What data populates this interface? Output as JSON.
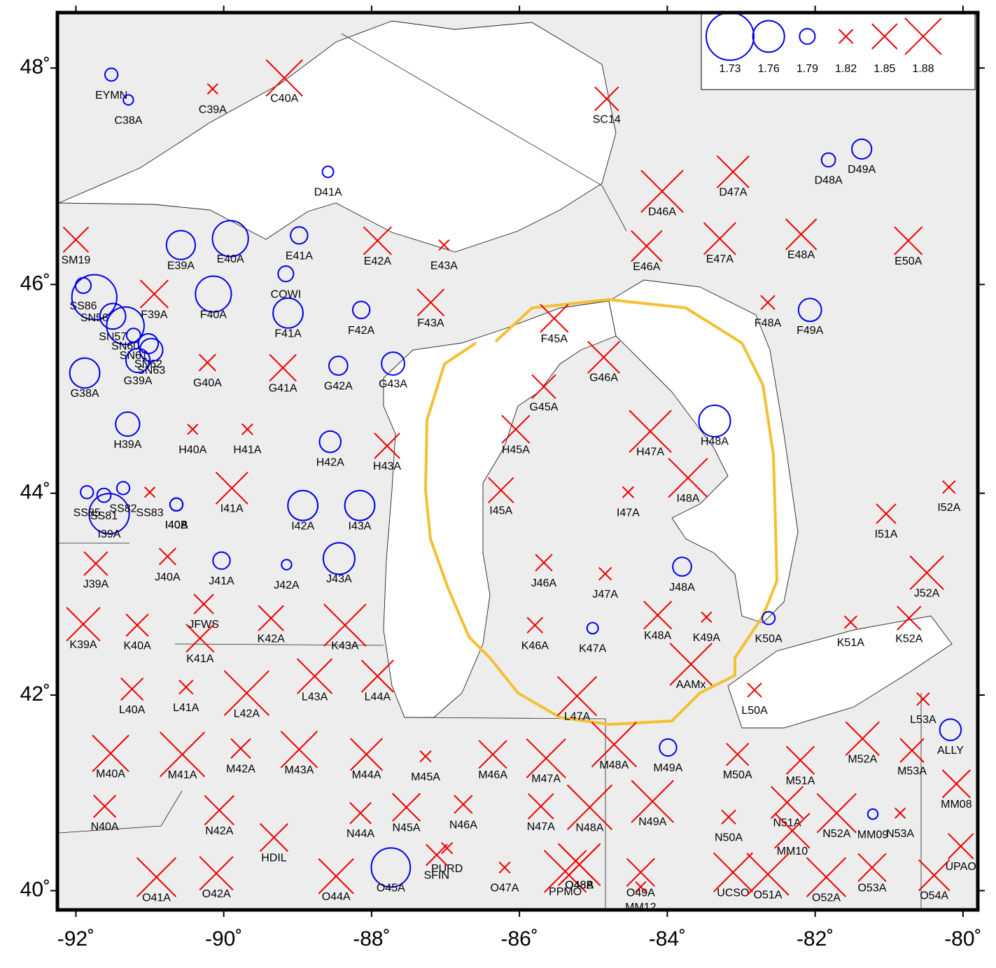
{
  "chart_data": {
    "type": "scatter",
    "projection": "mercator",
    "xlim": [
      -92.25,
      -79.8
    ],
    "ylim": [
      39.8,
      48.5
    ],
    "xticks": [
      {
        "value": -92,
        "label": "-92˚"
      },
      {
        "value": -90,
        "label": "-90˚"
      },
      {
        "value": -88,
        "label": "-88˚"
      },
      {
        "value": -86,
        "label": "-86˚"
      },
      {
        "value": -84,
        "label": "-84˚"
      },
      {
        "value": -82,
        "label": "-82˚"
      },
      {
        "value": -80,
        "label": "-80˚"
      }
    ],
    "yticks": [
      {
        "value": 40,
        "label": "40˚"
      },
      {
        "value": 42,
        "label": "42˚"
      },
      {
        "value": 44,
        "label": "44˚"
      },
      {
        "value": 46,
        "label": "46˚"
      },
      {
        "value": 48,
        "label": "48˚"
      }
    ],
    "low_color": "#0000ee",
    "high_color": "#ee0000",
    "legend": [
      1.73,
      1.76,
      1.79,
      1.82,
      1.85,
      1.88
    ],
    "labels": [
      "EYMN",
      "C38A",
      "C39A",
      "C40A",
      "SC14",
      "D41A",
      "D46A",
      "D47A",
      "D48A",
      "D49A",
      "SM19",
      "E39A",
      "E40A",
      "E41A",
      "E42A",
      "E43A",
      "E46A",
      "E47A",
      "E48A",
      "E50A",
      "COWI",
      "SS86",
      "SN56",
      "SN57",
      "SN60",
      "SN61",
      "SN62",
      "SN63",
      "F39A",
      "F40A",
      "F41A",
      "F42A",
      "F43A",
      "F45A",
      "F48A",
      "F49A",
      "G38A",
      "G39A",
      "G40A",
      "G41A",
      "G42A",
      "G43A",
      "G45A",
      "G46A",
      "H39A",
      "H40A",
      "H41A",
      "H42A",
      "H43A",
      "H45A",
      "H47A",
      "H48A",
      "I39A",
      "SS85",
      "SS81",
      "SS82",
      "SS83",
      "I40A",
      "I40B",
      "I41A",
      "I42A",
      "I43A",
      "I45A",
      "I47A",
      "I48A",
      "I51A",
      "I52A",
      "J39A",
      "J40A",
      "J41A",
      "J42A",
      "J43A",
      "J46A",
      "J47A",
      "J48A",
      "J52A",
      "JFWS",
      "K39A",
      "K40A",
      "K41A",
      "K42A",
      "K43A",
      "K46A",
      "K47A",
      "K48A",
      "K49A",
      "K50A",
      "K51A",
      "K52A",
      "AAMx",
      "L40A",
      "L41A",
      "L42A",
      "L43A",
      "L44A",
      "L47A",
      "L50A",
      "L53A",
      "ALLY",
      "M40A",
      "M41A",
      "M42A",
      "M43A",
      "M44A",
      "M45A",
      "M46A",
      "M47A",
      "M48A",
      "M49A",
      "M50A",
      "M51A",
      "M52A",
      "M53A",
      "MM08",
      "N40A",
      "N42A",
      "N44A",
      "N45A",
      "N46A",
      "N47A",
      "N48A",
      "N49A",
      "N50A",
      "N51A",
      "N52A",
      "MM09",
      "N53A",
      "MM10",
      "HDIL",
      "O41A",
      "O42A",
      "O44A",
      "O45A",
      "PURD",
      "SFIN",
      "O47A",
      "PPMO",
      "O48A",
      "O48B",
      "O49A",
      "MM12",
      "UCSO",
      "O51A",
      "O52A",
      "O53A",
      "O54A",
      "UPAO"
    ],
    "x": [
      -91.52,
      -91.29,
      -90.15,
      -89.18,
      -84.82,
      -88.59,
      -84.07,
      -83.11,
      -81.82,
      -81.37,
      -92.0,
      -90.58,
      -89.91,
      -88.98,
      -87.92,
      -87.02,
      -84.28,
      -83.29,
      -82.19,
      -80.74,
      -89.16,
      -91.9,
      -91.75,
      -91.5,
      -91.33,
      -91.22,
      -91.02,
      -90.98,
      -90.94,
      -90.14,
      -89.13,
      -88.14,
      -87.2,
      -85.53,
      -82.64,
      -82.07,
      -91.88,
      -91.16,
      -90.22,
      -89.2,
      -88.45,
      -87.71,
      -85.67,
      -84.86,
      -91.3,
      -90.42,
      -89.68,
      -88.56,
      -87.79,
      -86.05,
      -84.23,
      -83.36,
      -91.55,
      -91.85,
      -91.62,
      -91.36,
      -91.0,
      -90.64,
      -90.64,
      -89.89,
      -88.93,
      -88.16,
      -86.25,
      -84.53,
      -83.72,
      -81.04,
      -80.19,
      -91.73,
      -90.76,
      -90.03,
      -89.15,
      -88.44,
      -85.67,
      -84.84,
      -83.8,
      -80.49,
      -90.27,
      -91.9,
      -91.17,
      -90.32,
      -89.36,
      -88.36,
      -85.79,
      -85.01,
      -84.13,
      -83.47,
      -82.63,
      -81.52,
      -80.73,
      -83.68,
      -91.24,
      -90.51,
      -89.69,
      -88.77,
      -87.92,
      -85.22,
      -82.82,
      -80.54,
      -80.17,
      -91.53,
      -90.56,
      -89.77,
      -88.98,
      -88.07,
      -87.27,
      -86.36,
      -85.64,
      -84.72,
      -83.99,
      -83.05,
      -82.2,
      -81.36,
      -80.69,
      -80.09,
      -91.61,
      -90.06,
      -88.15,
      -87.53,
      -86.76,
      -85.71,
      -85.05,
      -84.2,
      -83.17,
      -82.38,
      -81.71,
      -81.22,
      -80.85,
      -82.31,
      -89.32,
      -90.91,
      -90.1,
      -88.48,
      -87.74,
      -86.98,
      -87.12,
      -86.2,
      -85.38,
      -85.19,
      -85.19,
      -84.36,
      -84.36,
      -83.11,
      -82.64,
      -81.85,
      -81.23,
      -80.39,
      -80.03
    ],
    "y": [
      47.94,
      47.71,
      47.81,
      47.91,
      47.72,
      47.05,
      46.87,
      47.05,
      47.16,
      47.26,
      46.42,
      46.37,
      46.43,
      46.46,
      46.41,
      46.37,
      46.36,
      46.43,
      46.47,
      46.41,
      46.1,
      45.99,
      45.88,
      45.7,
      45.61,
      45.52,
      45.44,
      45.38,
      45.91,
      45.91,
      45.73,
      45.76,
      45.83,
      45.68,
      45.83,
      45.76,
      45.16,
      45.28,
      45.26,
      45.21,
      45.23,
      45.25,
      45.03,
      45.31,
      44.67,
      44.62,
      44.62,
      44.5,
      44.46,
      44.62,
      44.6,
      44.7,
      43.8,
      44.01,
      43.98,
      44.05,
      44.01,
      43.89,
      43.89,
      44.05,
      43.88,
      43.88,
      44.03,
      44.01,
      44.15,
      43.8,
      44.06,
      43.31,
      43.38,
      43.34,
      43.3,
      43.36,
      43.32,
      43.21,
      43.28,
      43.22,
      42.91,
      42.71,
      42.7,
      42.57,
      42.77,
      42.7,
      42.7,
      42.67,
      42.8,
      42.78,
      42.77,
      42.73,
      42.77,
      42.31,
      42.06,
      42.08,
      42.02,
      42.19,
      42.19,
      41.99,
      42.05,
      41.96,
      41.65,
      41.41,
      41.4,
      41.46,
      41.45,
      41.4,
      41.38,
      41.4,
      41.36,
      41.5,
      41.47,
      41.4,
      41.34,
      41.56,
      41.44,
      41.1,
      40.87,
      40.83,
      40.8,
      40.86,
      40.89,
      40.87,
      40.86,
      40.92,
      40.76,
      40.91,
      40.8,
      40.79,
      40.8,
      40.62,
      40.55,
      40.14,
      40.18,
      40.15,
      40.24,
      40.44,
      40.37,
      40.24,
      40.2,
      40.27,
      40.27,
      40.19,
      40.04,
      40.19,
      40.17,
      40.14,
      40.24,
      40.16,
      40.46
    ],
    "values": [
      1.795,
      1.8,
      1.81,
      1.88,
      1.846,
      1.798,
      1.895,
      1.868,
      1.793,
      1.782,
      1.85,
      1.765,
      1.752,
      1.787,
      1.857,
      1.81,
      1.865,
      1.868,
      1.865,
      1.857,
      1.79,
      1.79,
      1.735,
      1.771,
      1.749,
      1.793,
      1.782,
      1.776,
      1.857,
      1.752,
      1.763,
      1.787,
      1.854,
      1.857,
      1.82,
      1.776,
      1.763,
      1.774,
      1.827,
      1.854,
      1.784,
      1.776,
      1.846,
      1.868,
      1.774,
      1.81,
      1.812,
      1.779,
      1.85,
      1.857,
      1.895,
      1.76,
      1.744,
      1.795,
      1.793,
      1.795,
      1.81,
      1.795,
      1.795,
      1.868,
      1.763,
      1.763,
      1.85,
      1.812,
      1.887,
      1.835,
      1.816,
      1.846,
      1.827,
      1.787,
      1.8,
      1.76,
      1.827,
      1.816,
      1.784,
      1.872,
      1.835,
      1.872,
      1.842,
      1.857,
      1.85,
      1.895,
      1.824,
      1.798,
      1.857,
      1.81,
      1.795,
      1.816,
      1.846,
      1.895,
      1.842,
      1.82,
      1.902,
      1.876,
      1.868,
      1.887,
      1.82,
      1.816,
      1.779,
      1.88,
      1.902,
      1.835,
      1.88,
      1.868,
      1.812,
      1.857,
      1.887,
      1.902,
      1.787,
      1.842,
      1.857,
      1.872,
      1.846,
      1.857,
      1.842,
      1.861,
      1.839,
      1.857,
      1.831,
      1.85,
      1.902,
      1.895,
      1.82,
      1.868,
      1.887,
      1.8,
      1.81,
      1.876,
      1.857,
      1.887,
      1.872,
      1.876,
      1.746,
      1.812,
      1.839,
      1.812,
      1.895,
      1.895,
      1.876,
      1.857,
      1.81,
      1.887,
      1.895,
      1.887,
      1.857,
      1.865,
      1.85
    ]
  }
}
